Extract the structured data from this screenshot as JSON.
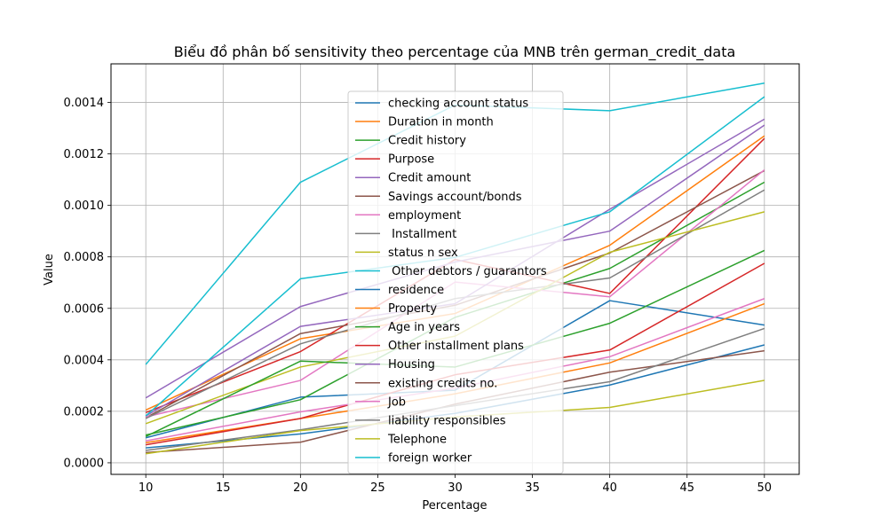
{
  "chart_data": {
    "type": "line",
    "title": "Biểu đồ phân bố sensitivity theo percentage của MNB trên german_credit_data",
    "xlabel": "Percentage",
    "ylabel": "Value",
    "x": [
      10,
      20,
      30,
      40,
      50
    ],
    "xlim": [
      7.75,
      52.25
    ],
    "ylim": [
      -4.5e-05,
      0.00155
    ],
    "xticks": [
      "10",
      "15",
      "20",
      "25",
      "30",
      "35",
      "40",
      "45",
      "50"
    ],
    "yticks": [
      "0.0000",
      "0.0002",
      "0.0004",
      "0.0006",
      "0.0008",
      "0.0010",
      "0.0012",
      "0.0014"
    ],
    "grid": true,
    "legend_position": "center",
    "series": [
      {
        "name": "checking account status",
        "color": "#1f77b4",
        "values": [
          9.7e-05,
          0.000255,
          0.000282,
          0.00063,
          0.000535
        ]
      },
      {
        "name": "Duration in month",
        "color": "#ff7f0e",
        "values": [
          0.000205,
          0.000482,
          0.00058,
          0.000845,
          0.00127
        ]
      },
      {
        "name": "Credit history",
        "color": "#2ca02c",
        "values": [
          0.000108,
          0.000245,
          0.000565,
          0.000755,
          0.00109
        ]
      },
      {
        "name": "Purpose",
        "color": "#d62728",
        "values": [
          0.000195,
          0.000432,
          0.00079,
          0.000658,
          0.00126
        ]
      },
      {
        "name": "Credit amount",
        "color": "#9467bd",
        "values": [
          0.000252,
          0.000607,
          0.00078,
          0.0009,
          0.001312
        ]
      },
      {
        "name": "Savings account/bonds",
        "color": "#8c564b",
        "values": [
          0.000175,
          0.000502,
          0.000612,
          0.000815,
          0.001135
        ]
      },
      {
        "name": "employment",
        "color": "#e377c2",
        "values": [
          0.000178,
          0.00032,
          0.000702,
          0.000645,
          0.001138
        ]
      },
      {
        "name": " Installment",
        "color": "#7f7f7f",
        "values": [
          0.000172,
          0.000462,
          0.000638,
          0.000718,
          0.00106
        ]
      },
      {
        "name": "status n sex",
        "color": "#bcbd22",
        "values": [
          0.000152,
          0.000372,
          0.000492,
          0.000818,
          0.000975
        ]
      },
      {
        "name": " Other debtors / guarantors",
        "color": "#17becf",
        "values": [
          0.000382,
          0.00109,
          0.00139,
          0.001368,
          0.001475
        ]
      },
      {
        "name": "residence",
        "color": "#1f77b4",
        "values": [
          5.8e-05,
          0.000112,
          0.000192,
          0.000302,
          0.000458
        ]
      },
      {
        "name": "Property",
        "color": "#ff7f0e",
        "values": [
          7.8e-05,
          0.000172,
          0.000268,
          0.000388,
          0.000618
        ]
      },
      {
        "name": "Age in years",
        "color": "#2ca02c",
        "values": [
          0.000102,
          0.000395,
          0.000372,
          0.000542,
          0.000825
        ]
      },
      {
        "name": "Other installment plans",
        "color": "#d62728",
        "values": [
          7e-05,
          0.000172,
          0.000342,
          0.000438,
          0.000775
        ]
      },
      {
        "name": "Housing",
        "color": "#9467bd",
        "values": [
          0.000182,
          0.00053,
          0.000618,
          0.000985,
          0.001335
        ]
      },
      {
        "name": "existing credits no.",
        "color": "#8c564b",
        "values": [
          4e-05,
          8e-05,
          0.000228,
          0.000352,
          0.000435
        ]
      },
      {
        "name": "Job",
        "color": "#e377c2",
        "values": [
          8.5e-05,
          0.000198,
          0.00029,
          0.000412,
          0.000638
        ]
      },
      {
        "name": "liability responsibles",
        "color": "#7f7f7f",
        "values": [
          4.8e-05,
          0.000128,
          0.000222,
          0.000315,
          0.000522
        ]
      },
      {
        "name": "Telephone",
        "color": "#bcbd22",
        "values": [
          3.5e-05,
          0.000125,
          0.000178,
          0.000215,
          0.00032
        ]
      },
      {
        "name": "foreign worker",
        "color": "#17becf",
        "values": [
          0.000182,
          0.000715,
          0.000798,
          0.000975,
          0.001422
        ]
      }
    ]
  }
}
